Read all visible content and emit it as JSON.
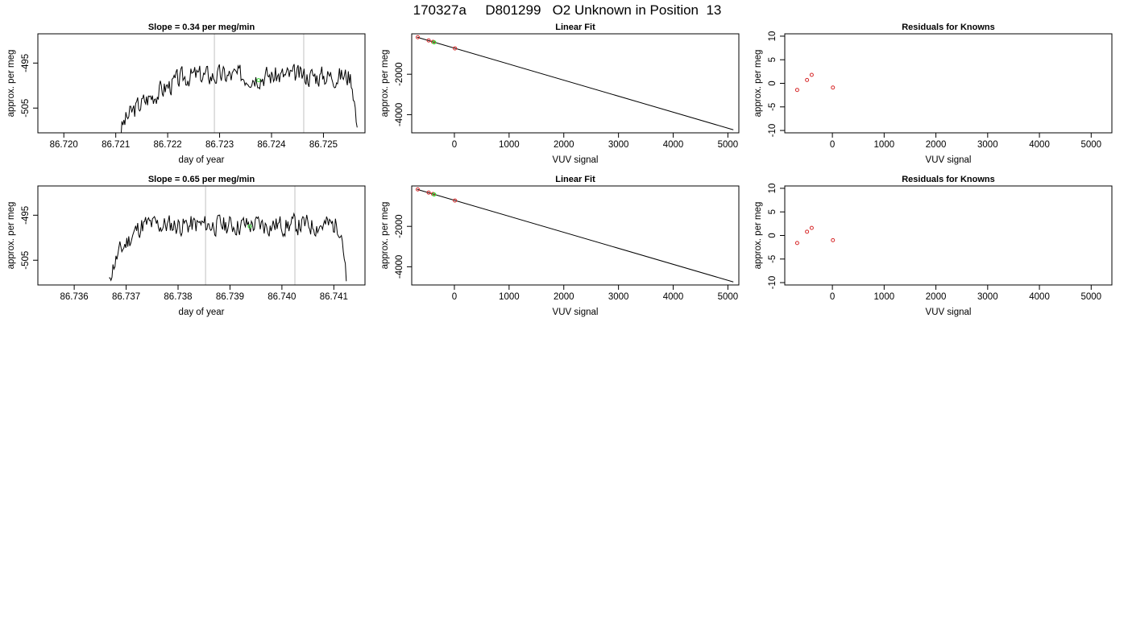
{
  "figure": {
    "title": "170327a     D801299   O2 Unknown in Position  13"
  },
  "colors": {
    "known": "#d62728",
    "unknown": "#33dd33",
    "series": "#000000",
    "marker_line": "#cccccc"
  },
  "chart_data": [
    {
      "type": "line",
      "row": 0,
      "col": 0,
      "title": "Slope =  0.34  per meg/min",
      "xlabel": "day of year",
      "ylabel": "approx. per meg",
      "xlim": [
        86.7195,
        86.7258
      ],
      "ylim": [
        -510.5,
        -488.5
      ],
      "xticks": [
        86.72,
        86.721,
        86.722,
        86.723,
        86.724,
        86.725
      ],
      "xtick_labels": [
        "86.720",
        "86.721",
        "86.722",
        "86.723",
        "86.724",
        "86.725"
      ],
      "yticks": [
        -495,
        -505
      ],
      "ytick_labels": [
        "-495",
        "-505"
      ],
      "x_start": 86.7211,
      "x_rise_end": 86.7224,
      "x_plateau_end": 86.7255,
      "x_end": 86.72565,
      "y_start": -510.6,
      "y_plateau": -497.8,
      "y_end": -510.6,
      "noise_seed": 3,
      "vlines": [
        86.7229,
        86.72462
      ],
      "unknown_point": {
        "x": 86.72375,
        "y": -498.8
      }
    },
    {
      "type": "scatter",
      "row": 0,
      "col": 1,
      "title": "Linear Fit",
      "xlabel": "VUV signal",
      "ylabel": "approx. per meg",
      "xlim": [
        -780,
        5200
      ],
      "ylim": [
        -4900,
        0
      ],
      "xticks": [
        0,
        1000,
        2000,
        3000,
        4000,
        5000
      ],
      "xtick_labels": [
        "0",
        "1000",
        "2000",
        "3000",
        "4000",
        "5000"
      ],
      "yticks": [
        -2000,
        -4000
      ],
      "ytick_labels": [
        "-2000",
        "-4000"
      ],
      "fit_line": {
        "x": [
          -680,
          5100
        ],
        "y": [
          -170,
          -4750
        ]
      },
      "knowns": {
        "x": [
          -670,
          -470,
          -390,
          10
        ],
        "y": [
          -170,
          -330,
          -400,
          -720
        ]
      },
      "unknown_point": {
        "x": -370,
        "y": -420
      }
    },
    {
      "type": "scatter",
      "row": 0,
      "col": 2,
      "title": "Residuals for Knowns",
      "xlabel": "VUV signal",
      "ylabel": "approx. per meg",
      "xlim": [
        -920,
        5400
      ],
      "ylim": [
        -10.5,
        10.5
      ],
      "xticks": [
        0,
        1000,
        2000,
        3000,
        4000,
        5000
      ],
      "xtick_labels": [
        "0",
        "1000",
        "2000",
        "3000",
        "4000",
        "5000"
      ],
      "yticks": [
        10,
        5,
        0,
        -5,
        -10
      ],
      "ytick_labels": [
        "10",
        "5",
        "0",
        "-5",
        "-10"
      ],
      "knowns": {
        "x": [
          -680,
          -490,
          -400,
          10
        ],
        "y": [
          -1.4,
          0.7,
          1.8,
          -0.9
        ]
      }
    },
    {
      "type": "line",
      "row": 1,
      "col": 0,
      "title": "Slope =  0.65  per meg/min",
      "xlabel": "day of year",
      "ylabel": "approx. per meg",
      "xlim": [
        86.7353,
        86.7416
      ],
      "ylim": [
        -510.5,
        -488.5
      ],
      "xticks": [
        86.736,
        86.737,
        86.738,
        86.739,
        86.74,
        86.741
      ],
      "xtick_labels": [
        "86.736",
        "86.737",
        "86.738",
        "86.739",
        "86.740",
        "86.741"
      ],
      "yticks": [
        -495,
        -505
      ],
      "ytick_labels": [
        "-495",
        "-505"
      ],
      "x_start": 86.73667,
      "x_rise_end": 86.7373,
      "x_plateau_end": 86.7411,
      "x_end": 86.74124,
      "y_start": -510.6,
      "y_plateau": -497.2,
      "y_end": -510.6,
      "noise_seed": 11,
      "vlines": [
        86.73853,
        86.74025
      ],
      "unknown_point": {
        "x": 86.73938,
        "y": -497.5
      }
    },
    {
      "type": "scatter",
      "row": 1,
      "col": 1,
      "title": "Linear Fit",
      "xlabel": "VUV signal",
      "ylabel": "approx. per meg",
      "xlim": [
        -780,
        5200
      ],
      "ylim": [
        -4900,
        0
      ],
      "xticks": [
        0,
        1000,
        2000,
        3000,
        4000,
        5000
      ],
      "xtick_labels": [
        "0",
        "1000",
        "2000",
        "3000",
        "4000",
        "5000"
      ],
      "yticks": [
        -2000,
        -4000
      ],
      "ytick_labels": [
        "-2000",
        "-4000"
      ],
      "fit_line": {
        "x": [
          -680,
          5100
        ],
        "y": [
          -170,
          -4750
        ]
      },
      "knowns": {
        "x": [
          -670,
          -470,
          -390,
          10
        ],
        "y": [
          -170,
          -330,
          -400,
          -720
        ]
      },
      "unknown_point": {
        "x": -370,
        "y": -420
      }
    },
    {
      "type": "scatter",
      "row": 1,
      "col": 2,
      "title": "Residuals for Knowns",
      "xlabel": "VUV signal",
      "ylabel": "approx. per meg",
      "xlim": [
        -920,
        5400
      ],
      "ylim": [
        -10.5,
        10.5
      ],
      "xticks": [
        0,
        1000,
        2000,
        3000,
        4000,
        5000
      ],
      "xtick_labels": [
        "0",
        "1000",
        "2000",
        "3000",
        "4000",
        "5000"
      ],
      "yticks": [
        10,
        5,
        0,
        -5,
        -10
      ],
      "ytick_labels": [
        "10",
        "5",
        "0",
        "-5",
        "-10"
      ],
      "knowns": {
        "x": [
          -680,
          -490,
          -400,
          10
        ],
        "y": [
          -1.6,
          0.8,
          1.6,
          -1.0
        ]
      }
    }
  ]
}
